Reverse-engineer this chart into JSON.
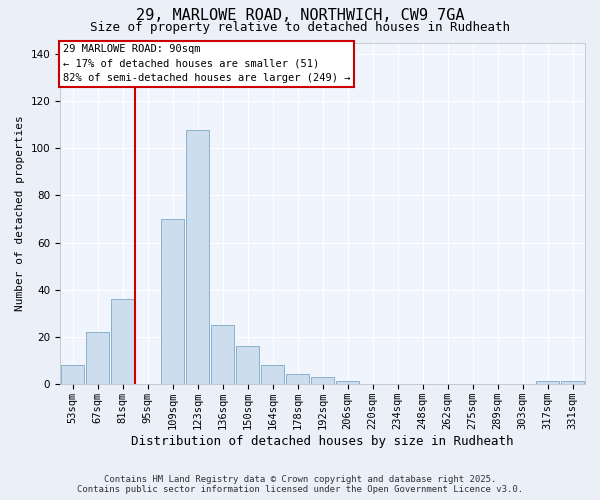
{
  "title": "29, MARLOWE ROAD, NORTHWICH, CW9 7GA",
  "subtitle": "Size of property relative to detached houses in Rudheath",
  "xlabel": "Distribution of detached houses by size in Rudheath",
  "ylabel": "Number of detached properties",
  "categories": [
    "53sqm",
    "67sqm",
    "81sqm",
    "95sqm",
    "109sqm",
    "123sqm",
    "136sqm",
    "150sqm",
    "164sqm",
    "178sqm",
    "192sqm",
    "206sqm",
    "220sqm",
    "234sqm",
    "248sqm",
    "262sqm",
    "275sqm",
    "289sqm",
    "303sqm",
    "317sqm",
    "331sqm"
  ],
  "values": [
    8,
    22,
    36,
    0,
    70,
    108,
    25,
    16,
    8,
    4,
    3,
    1,
    0,
    0,
    0,
    0,
    0,
    0,
    0,
    1,
    1
  ],
  "bar_color": "#ccdded",
  "bar_edge_color": "#8ab0cc",
  "vline_color": "#cc0000",
  "annotation_box_text": "29 MARLOWE ROAD: 90sqm\n← 17% of detached houses are smaller (51)\n82% of semi-detached houses are larger (249) →",
  "annotation_box_color": "#cc0000",
  "annotation_box_bg": "#ffffff",
  "ylim": [
    0,
    145
  ],
  "yticks": [
    0,
    20,
    40,
    60,
    80,
    100,
    120,
    140
  ],
  "bg_color": "#eaeff8",
  "plot_bg_color": "#f0f4fc",
  "grid_color": "#ffffff",
  "footnote1": "Contains HM Land Registry data © Crown copyright and database right 2025.",
  "footnote2": "Contains public sector information licensed under the Open Government Licence v3.0.",
  "title_fontsize": 11,
  "subtitle_fontsize": 9,
  "xlabel_fontsize": 9,
  "ylabel_fontsize": 8,
  "tick_fontsize": 7.5,
  "footnote_fontsize": 6.5,
  "annot_fontsize": 7.5
}
